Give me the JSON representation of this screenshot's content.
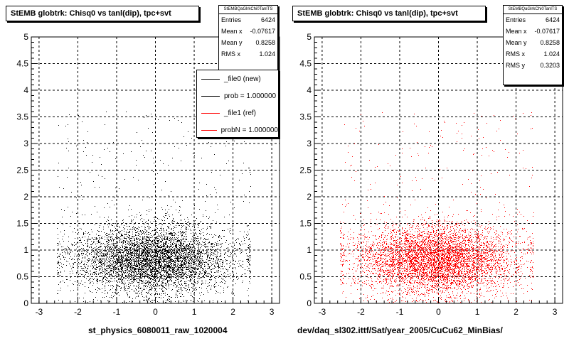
{
  "chart_data": [
    {
      "type": "scatter",
      "title": "StEMB globtrk: Chisq0 vs tanl(dip), tpc+svt",
      "xlabel": "st_physics_6080011_raw_1020004",
      "ylabel": "",
      "xlim": [
        -3.2,
        3.2
      ],
      "ylim": [
        0,
        5
      ],
      "xticks": [
        "-3",
        "-2",
        "-1",
        "0",
        "1",
        "2",
        "3"
      ],
      "yticks": [
        "0",
        "0.5",
        "1",
        "1.5",
        "2",
        "2.5",
        "3",
        "3.5",
        "4",
        "4.5",
        "5"
      ],
      "grid": true,
      "point_color": "#000000",
      "stats": {
        "name": "StEMBQaGlrkChi0TanlTS",
        "rows": [
          {
            "label": "Entries",
            "value": "6424"
          },
          {
            "label": "Mean x",
            "value": "-0.07617"
          },
          {
            "label": "Mean y",
            "value": "0.8258"
          },
          {
            "label": "RMS x",
            "value": "1.024"
          }
        ]
      },
      "legend": {
        "placement": "top-right",
        "entries": [
          {
            "label": "_file0 (new)",
            "color": "#000000"
          },
          {
            "label": "prob = 1.000000",
            "color": "#000000"
          },
          {
            "label": "_file1 (ref)",
            "color": "#ff0000"
          },
          {
            "label": "probN = 1.000000",
            "color": "#ff0000"
          }
        ]
      },
      "distribution": {
        "entries": 6424,
        "mean_x": -0.07617,
        "mean_y": 0.8258,
        "rms_x": 1.024,
        "rms_y": 0.3203
      }
    },
    {
      "type": "scatter",
      "title": "StEMB globtrk: Chisq0 vs tanl(dip), tpc+svt",
      "xlabel": "dev/daq_sl302.ittf/Sat/year_2005/CuCu62_MinBias/",
      "ylabel": "",
      "xlim": [
        -3.2,
        3.2
      ],
      "ylim": [
        0,
        5
      ],
      "xticks": [
        "-3",
        "-2",
        "-1",
        "0",
        "1",
        "2",
        "3"
      ],
      "yticks": [
        "0",
        "0.5",
        "1",
        "1.5",
        "2",
        "2.5",
        "3",
        "3.5",
        "4",
        "4.5",
        "5"
      ],
      "grid": true,
      "point_color": "#ff0000",
      "stats": {
        "name": "StEMBQaGlrkChi0TanlTS",
        "rows": [
          {
            "label": "Entries",
            "value": "6424"
          },
          {
            "label": "Mean x",
            "value": "-0.07617"
          },
          {
            "label": "Mean y",
            "value": "0.8258"
          },
          {
            "label": "RMS x",
            "value": "1.024"
          },
          {
            "label": "RMS y",
            "value": "0.3203"
          }
        ]
      },
      "distribution": {
        "entries": 6424,
        "mean_x": -0.07617,
        "mean_y": 0.8258,
        "rms_x": 1.024,
        "rms_y": 0.3203
      }
    }
  ]
}
